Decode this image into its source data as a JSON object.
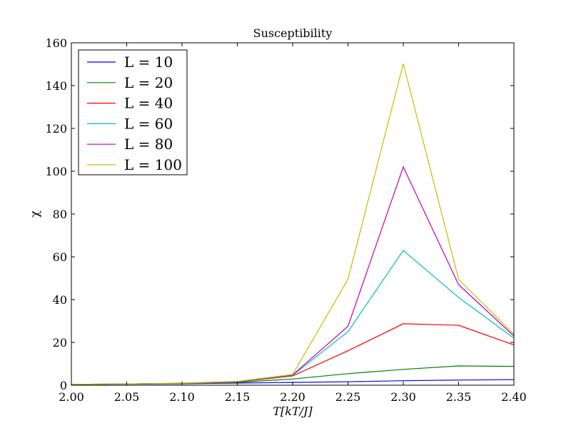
{
  "chart_data": {
    "type": "line",
    "title": "Susceptibility",
    "xlabel": "T[kT/J]",
    "ylabel": "χ",
    "xlim": [
      2.0,
      2.4
    ],
    "ylim": [
      0,
      160
    ],
    "xticks": [
      "2.00",
      "2.05",
      "2.10",
      "2.15",
      "2.20",
      "2.25",
      "2.30",
      "2.35",
      "2.40"
    ],
    "yticks": [
      "0",
      "20",
      "40",
      "60",
      "80",
      "100",
      "120",
      "140",
      "160"
    ],
    "grid": false,
    "legend_position": "top-left",
    "x": [
      2.0,
      2.05,
      2.1,
      2.15,
      2.2,
      2.25,
      2.3,
      2.35,
      2.4
    ],
    "series": [
      {
        "name": "L = 10",
        "color": "#0000ff",
        "values": [
          0.3,
          0.5,
          0.7,
          1.0,
          1.3,
          1.6,
          2.1,
          2.4,
          2.6
        ]
      },
      {
        "name": "L = 20",
        "color": "#008000",
        "values": [
          0.4,
          0.6,
          0.8,
          1.3,
          2.9,
          5.4,
          7.4,
          9.0,
          8.8
        ]
      },
      {
        "name": "L = 40",
        "color": "#ff0000",
        "values": [
          0.4,
          0.6,
          0.9,
          1.5,
          4.3,
          16.1,
          28.7,
          28.0,
          18.8
        ]
      },
      {
        "name": "L = 60",
        "color": "#00bfbf",
        "values": [
          0.4,
          0.6,
          0.9,
          1.6,
          4.6,
          25.0,
          63.0,
          41.0,
          22.0
        ]
      },
      {
        "name": "L = 80",
        "color": "#bf00bf",
        "values": [
          0.4,
          0.6,
          0.9,
          1.7,
          4.8,
          27.5,
          102.0,
          47.0,
          23.0
        ]
      },
      {
        "name": "L = 100",
        "color": "#bfbf00",
        "values": [
          0.4,
          0.6,
          1.0,
          1.8,
          5.0,
          49.5,
          150.2,
          49.5,
          23.8
        ]
      }
    ]
  }
}
